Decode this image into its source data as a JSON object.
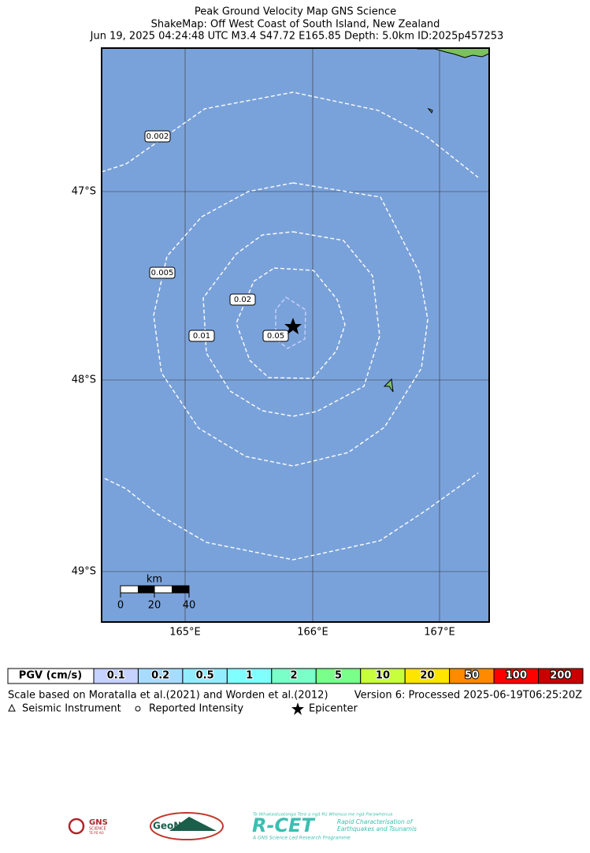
{
  "header": {
    "line1": "Peak Ground Velocity Map GNS Science",
    "line2": "ShakeMap: Off West Coast of South Island, New Zealand",
    "line3": "Jun 19, 2025 04:24:48 UTC M3.4 S47.72 E165.85 Depth: 5.0km ID:2025p457253"
  },
  "map": {
    "lat_labels": [
      "47°S",
      "48°S",
      "49°S"
    ],
    "lon_labels": [
      "165°E",
      "166°E",
      "167°E"
    ],
    "contour_labels": [
      "0.002",
      "0.005",
      "0.02",
      "0.01",
      "0.05"
    ],
    "scale_bar": {
      "unit": "km",
      "labels": [
        "0",
        "20",
        "40"
      ]
    }
  },
  "legend": {
    "title": "PGV (cm/s)",
    "cells": [
      {
        "label": "0.1",
        "color": "#c6d2ff"
      },
      {
        "label": "0.2",
        "color": "#a8dcff"
      },
      {
        "label": "0.5",
        "color": "#92eeff"
      },
      {
        "label": "1",
        "color": "#80ffff"
      },
      {
        "label": "2",
        "color": "#7affc8"
      },
      {
        "label": "5",
        "color": "#7aff8a"
      },
      {
        "label": "10",
        "color": "#c8ff3c"
      },
      {
        "label": "20",
        "color": "#ffe400"
      },
      {
        "label": "50",
        "color": "#ff8a00"
      },
      {
        "label": "100",
        "color": "#ff0000"
      },
      {
        "label": "200",
        "color": "#c80000"
      }
    ]
  },
  "footer": {
    "scale_note": "Scale based on Moratalla et al.(2021) and Worden et al.(2012)",
    "version": "Version 6: Processed 2025-06-19T06:25:20Z",
    "key": [
      "Seismic Instrument",
      "Reported Intensity",
      "Epicenter"
    ]
  },
  "logos": {
    "gns": [
      "GNS",
      "SCIENCE",
      "TE PŪ AO"
    ],
    "geonet": "GeoNet",
    "rcet": [
      "Te Whakaatuatanga Tere o ngā Rū Whenua me ngā Parawhenua",
      "R-CET",
      "Rapid Characterisation of",
      "Earthquakes and Tsunamis",
      "A GNS Science Led Research Programme"
    ]
  }
}
